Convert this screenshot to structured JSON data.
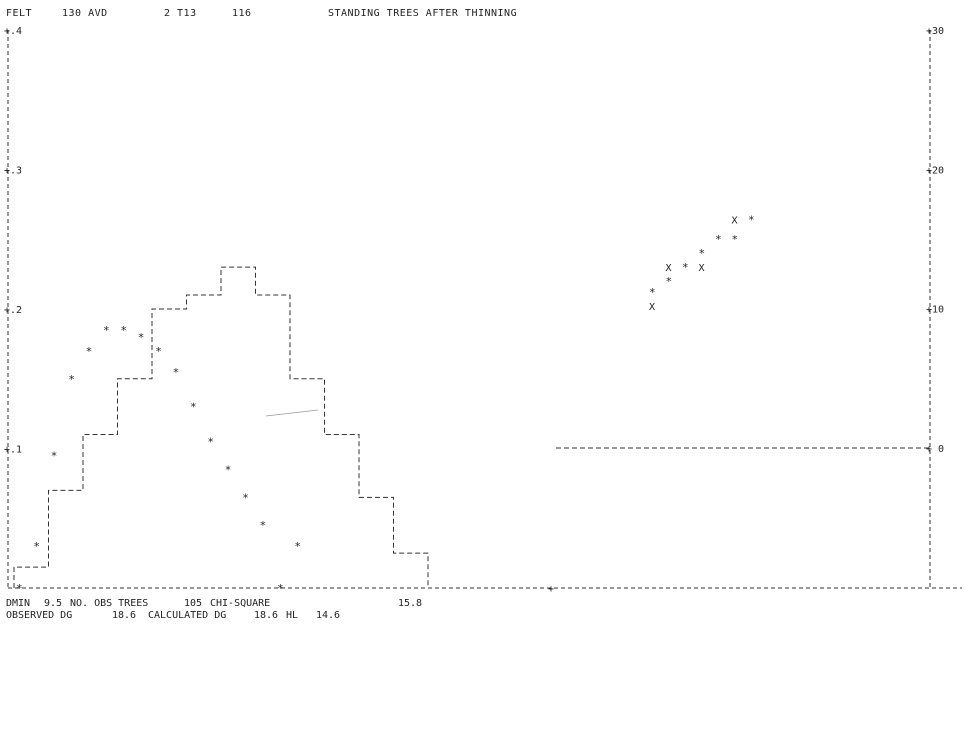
{
  "header": {
    "field_label": "FELT",
    "field_no": "130 AVD",
    "code": "2 T13",
    "number": "116",
    "title": "STANDING TREES AFTER THINNING"
  },
  "footer": {
    "dmin_label": "DMIN",
    "dmin_value": "9.5",
    "obs_label": "NO. OBS TREES",
    "obs_value": "105",
    "chi_label": "CHI-SQUARE",
    "chi_value": "15.8",
    "observed_dg_label": "OBSERVED DG",
    "observed_dg_value": "18.6",
    "calculated_dg_label": "CALCULATED DG",
    "calculated_dg_value": "18.6",
    "hl_label": "HL",
    "hl_value": "14.6"
  },
  "chart_data": [
    {
      "type": "histogram",
      "title": "STANDING TREES AFTER THINNING",
      "ylim": [
        0,
        0.4
      ],
      "y_ticks": [
        "+.4",
        "+.3",
        "+.2",
        "+.1"
      ],
      "y_tick_values": [
        0.4,
        0.3,
        0.2,
        0.1
      ],
      "series": [
        {
          "style": "step",
          "values": [
            0.015,
            0.07,
            0.11,
            0.15,
            0.2,
            0.21,
            0.23,
            0.21,
            0.15,
            0.11,
            0.065,
            0.025
          ]
        },
        {
          "style": "asterisk",
          "values": [
            0.0,
            0.03,
            0.095,
            0.15,
            0.17,
            0.185,
            0.185,
            0.18,
            0.17,
            0.155,
            0.13,
            0.105,
            0.085,
            0.065,
            0.045,
            0.0,
            0.03
          ]
        }
      ]
    },
    {
      "type": "scatter",
      "ylim": [
        -10,
        30
      ],
      "y_ticks": [
        "+30",
        "+20",
        "+10",
        "+ 0"
      ],
      "y_tick_values": [
        30,
        20,
        10,
        0
      ],
      "series": [
        {
          "marker": "X",
          "points": [
            [
              0,
              10.2
            ],
            [
              1,
              13.0
            ],
            [
              3,
              13.0
            ],
            [
              5,
              16.4
            ]
          ]
        },
        {
          "marker": "*",
          "points": [
            [
              0,
              11.2
            ],
            [
              1,
              12.0
            ],
            [
              2,
              13.0
            ],
            [
              3,
              14.0
            ],
            [
              4,
              15.0
            ],
            [
              5,
              15.0
            ],
            [
              6,
              16.4
            ]
          ]
        }
      ]
    }
  ]
}
